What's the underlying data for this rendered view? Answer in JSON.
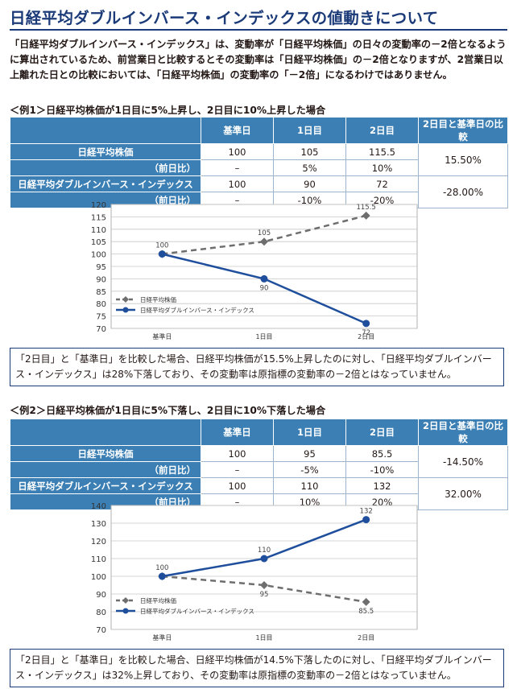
{
  "title": "日経平均ダブルインバース・インデックスの値動きについて",
  "intro": "「日経平均ダブルインバース・インデックス」は、変動率が「日経平均株価」の日々の変動率の－2倍となるように算出されているため、前営業日と比較するとその変動率は「日経平均株価」の－2倍となりますが、2営業日以上離れた日との比較においては、「日経平均株価」の変動率の「－2倍」になるわけではありません。",
  "examples": [
    {
      "heading": "＜例1＞日経平均株価が1日目に5%上昇し、2日目に10%上昇した場合",
      "columns": [
        "基準日",
        "1日目",
        "2日目",
        "2日目と基準日の比較"
      ],
      "rows": [
        {
          "label": "日経平均株価",
          "values": [
            "100",
            "105",
            "115.5"
          ],
          "sub_label": "（前日比）",
          "sub_values": [
            "–",
            "5%",
            "10%"
          ],
          "compare": "15.50%"
        },
        {
          "label": "日経平均ダブルインバース・インデックス",
          "values": [
            "100",
            "90",
            "72"
          ],
          "sub_label": "（前日比）",
          "sub_values": [
            "–",
            "-10%",
            "-20%"
          ],
          "compare": "-28.00%"
        }
      ],
      "note": "「2日目」と「基準日」を比較した場合、日経平均株価が15.5%上昇したのに対し、「日経平均ダブルインバース・インデックス」は28%下落しており、その変動率は原指標の変動率の－2倍とはなっていません。"
    },
    {
      "heading": "＜例2＞日経平均株価が1日目に5%下落し、2日目に10%下落した場合",
      "columns": [
        "基準日",
        "1日目",
        "2日目",
        "2日目と基準日の比較"
      ],
      "rows": [
        {
          "label": "日経平均株価",
          "values": [
            "100",
            "95",
            "85.5"
          ],
          "sub_label": "（前日比）",
          "sub_values": [
            "–",
            "-5%",
            "-10%"
          ],
          "compare": "-14.50%"
        },
        {
          "label": "日経平均ダブルインバース・インデックス",
          "values": [
            "100",
            "110",
            "132"
          ],
          "sub_label": "（前日比）",
          "sub_values": [
            "–",
            "10%",
            "20%"
          ],
          "compare": "32.00%"
        }
      ],
      "note": "「2日目」と「基準日」を比較した場合、日経平均株価が14.5%下落したのに対し、「日経平均ダブルインバース・インデックス」は32%上昇しており、その変動率は原指標の変動率の－2倍とはなっていません。"
    }
  ],
  "chart_data": [
    {
      "type": "line",
      "categories": [
        "基準日",
        "1日目",
        "2日目"
      ],
      "ylim": [
        70,
        120
      ],
      "yticks": [
        70,
        75,
        80,
        85,
        90,
        95,
        100,
        105,
        110,
        115,
        120
      ],
      "series": [
        {
          "name": "日経平均株価",
          "values": [
            100,
            105,
            115.5
          ],
          "labels": [
            "100",
            "105",
            "115.5"
          ],
          "color": "#6e6e6e",
          "dashed": true,
          "marker": "diamond"
        },
        {
          "name": "日経平均ダブルインバース・インデックス",
          "values": [
            100,
            90,
            72
          ],
          "labels": [
            "",
            "90",
            "72"
          ],
          "color": "#1f4f9c",
          "dashed": false,
          "marker": "circle"
        }
      ],
      "legend": "left-bottom",
      "grid": true
    },
    {
      "type": "line",
      "categories": [
        "基準日",
        "1日目",
        "2日目"
      ],
      "ylim": [
        70,
        140
      ],
      "yticks": [
        70,
        80,
        90,
        100,
        110,
        120,
        130,
        140
      ],
      "series": [
        {
          "name": "日経平均株価",
          "values": [
            100,
            95,
            85.5
          ],
          "labels": [
            "",
            "95",
            "85.5"
          ],
          "color": "#6e6e6e",
          "dashed": true,
          "marker": "diamond"
        },
        {
          "name": "日経平均ダブルインバース・インデックス",
          "values": [
            100,
            110,
            132
          ],
          "labels": [
            "100",
            "110",
            "132"
          ],
          "color": "#1f4f9c",
          "dashed": false,
          "marker": "circle"
        }
      ],
      "legend": "left-bottom",
      "grid": true
    }
  ],
  "colors": {
    "header_blue": "#3b7fb4",
    "title_navy": "#1a3a78",
    "series_gray": "#6e6e6e",
    "series_blue": "#1f4f9c"
  }
}
